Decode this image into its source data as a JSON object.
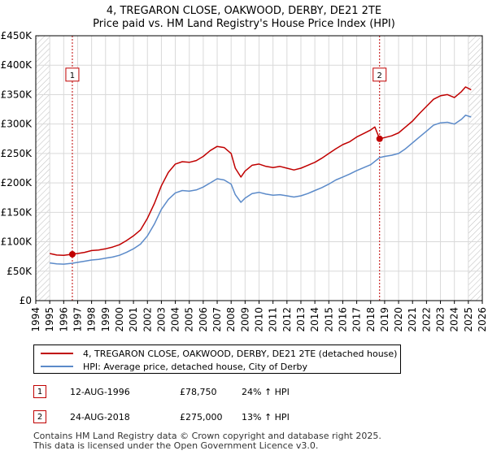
{
  "chart_data": {
    "type": "line",
    "title": "4, TREGARON CLOSE, OAKWOOD, DERBY, DE21 2TE",
    "subtitle": "Price paid vs. HM Land Registry's House Price Index (HPI)",
    "xlabel": "",
    "ylabel": "",
    "xlim": [
      1994,
      2026
    ],
    "ylim": [
      0,
      450000
    ],
    "x_ticks": [
      "1994",
      "1995",
      "1996",
      "1997",
      "1998",
      "1999",
      "2000",
      "2001",
      "2002",
      "2003",
      "2004",
      "2005",
      "2006",
      "2007",
      "2008",
      "2009",
      "2010",
      "2011",
      "2012",
      "2013",
      "2014",
      "2015",
      "2016",
      "2017",
      "2018",
      "2019",
      "2020",
      "2021",
      "2022",
      "2023",
      "2024",
      "2025",
      "2026"
    ],
    "y_ticks": [
      {
        "value": 0,
        "label": "£0"
      },
      {
        "value": 50000,
        "label": "£50K"
      },
      {
        "value": 100000,
        "label": "£100K"
      },
      {
        "value": 150000,
        "label": "£150K"
      },
      {
        "value": 200000,
        "label": "£200K"
      },
      {
        "value": 250000,
        "label": "£250K"
      },
      {
        "value": 300000,
        "label": "£300K"
      },
      {
        "value": 350000,
        "label": "£350K"
      },
      {
        "value": 400000,
        "label": "£400K"
      },
      {
        "value": 450000,
        "label": "£450K"
      }
    ],
    "grid": true,
    "hatched_ranges": [
      [
        1994,
        1995
      ],
      [
        2025,
        2026
      ]
    ],
    "series": [
      {
        "name": "4, TREGARON CLOSE, OAKWOOD, DERBY, DE21 2TE (detached house)",
        "color": "#c00000",
        "points": [
          [
            1995.0,
            80000
          ],
          [
            1995.5,
            77500
          ],
          [
            1996.0,
            77000
          ],
          [
            1996.62,
            78750
          ],
          [
            1997.0,
            80000
          ],
          [
            1997.5,
            82000
          ],
          [
            1998.0,
            85000
          ],
          [
            1998.5,
            86000
          ],
          [
            1999.0,
            88000
          ],
          [
            1999.5,
            91000
          ],
          [
            2000.0,
            95000
          ],
          [
            2000.5,
            102000
          ],
          [
            2001.0,
            110000
          ],
          [
            2001.5,
            120000
          ],
          [
            2002.0,
            140000
          ],
          [
            2002.5,
            165000
          ],
          [
            2003.0,
            195000
          ],
          [
            2003.5,
            218000
          ],
          [
            2004.0,
            232000
          ],
          [
            2004.5,
            236000
          ],
          [
            2005.0,
            235000
          ],
          [
            2005.5,
            238000
          ],
          [
            2006.0,
            245000
          ],
          [
            2006.5,
            255000
          ],
          [
            2007.0,
            262000
          ],
          [
            2007.5,
            260000
          ],
          [
            2008.0,
            250000
          ],
          [
            2008.3,
            225000
          ],
          [
            2008.7,
            210000
          ],
          [
            2009.0,
            220000
          ],
          [
            2009.5,
            230000
          ],
          [
            2010.0,
            232000
          ],
          [
            2010.5,
            228000
          ],
          [
            2011.0,
            226000
          ],
          [
            2011.5,
            228000
          ],
          [
            2012.0,
            225000
          ],
          [
            2012.5,
            222000
          ],
          [
            2013.0,
            225000
          ],
          [
            2013.5,
            230000
          ],
          [
            2014.0,
            235000
          ],
          [
            2014.5,
            242000
          ],
          [
            2015.0,
            250000
          ],
          [
            2015.5,
            258000
          ],
          [
            2016.0,
            265000
          ],
          [
            2016.5,
            270000
          ],
          [
            2017.0,
            278000
          ],
          [
            2017.5,
            284000
          ],
          [
            2018.0,
            290000
          ],
          [
            2018.3,
            295000
          ],
          [
            2018.64,
            275000
          ],
          [
            2019.0,
            277000
          ],
          [
            2019.5,
            280000
          ],
          [
            2020.0,
            285000
          ],
          [
            2020.5,
            295000
          ],
          [
            2021.0,
            305000
          ],
          [
            2021.5,
            318000
          ],
          [
            2022.0,
            330000
          ],
          [
            2022.5,
            342000
          ],
          [
            2023.0,
            348000
          ],
          [
            2023.5,
            350000
          ],
          [
            2024.0,
            345000
          ],
          [
            2024.5,
            355000
          ],
          [
            2024.8,
            363000
          ],
          [
            2025.2,
            358000
          ]
        ]
      },
      {
        "name": "HPI: Average price, detached house, City of Derby",
        "color": "#5b8ac9",
        "points": [
          [
            1995.0,
            64000
          ],
          [
            1995.5,
            62500
          ],
          [
            1996.0,
            62000
          ],
          [
            1996.62,
            63500
          ],
          [
            1997.0,
            65000
          ],
          [
            1997.5,
            67000
          ],
          [
            1998.0,
            69000
          ],
          [
            1998.5,
            70000
          ],
          [
            1999.0,
            72000
          ],
          [
            1999.5,
            74000
          ],
          [
            2000.0,
            77000
          ],
          [
            2000.5,
            82000
          ],
          [
            2001.0,
            88000
          ],
          [
            2001.5,
            96000
          ],
          [
            2002.0,
            110000
          ],
          [
            2002.5,
            130000
          ],
          [
            2003.0,
            155000
          ],
          [
            2003.5,
            172000
          ],
          [
            2004.0,
            183000
          ],
          [
            2004.5,
            187000
          ],
          [
            2005.0,
            186000
          ],
          [
            2005.5,
            188000
          ],
          [
            2006.0,
            193000
          ],
          [
            2006.5,
            200000
          ],
          [
            2007.0,
            207000
          ],
          [
            2007.5,
            205000
          ],
          [
            2008.0,
            198000
          ],
          [
            2008.3,
            180000
          ],
          [
            2008.7,
            167000
          ],
          [
            2009.0,
            174000
          ],
          [
            2009.5,
            182000
          ],
          [
            2010.0,
            184000
          ],
          [
            2010.5,
            181000
          ],
          [
            2011.0,
            179000
          ],
          [
            2011.5,
            180000
          ],
          [
            2012.0,
            178000
          ],
          [
            2012.5,
            176000
          ],
          [
            2013.0,
            178000
          ],
          [
            2013.5,
            182000
          ],
          [
            2014.0,
            187000
          ],
          [
            2014.5,
            192000
          ],
          [
            2015.0,
            198000
          ],
          [
            2015.5,
            205000
          ],
          [
            2016.0,
            210000
          ],
          [
            2016.5,
            215000
          ],
          [
            2017.0,
            221000
          ],
          [
            2017.5,
            226000
          ],
          [
            2018.0,
            231000
          ],
          [
            2018.64,
            243000
          ],
          [
            2019.0,
            245000
          ],
          [
            2019.5,
            247000
          ],
          [
            2020.0,
            250000
          ],
          [
            2020.5,
            258000
          ],
          [
            2021.0,
            268000
          ],
          [
            2021.5,
            278000
          ],
          [
            2022.0,
            288000
          ],
          [
            2022.5,
            298000
          ],
          [
            2023.0,
            302000
          ],
          [
            2023.5,
            303000
          ],
          [
            2024.0,
            300000
          ],
          [
            2024.5,
            308000
          ],
          [
            2024.8,
            315000
          ],
          [
            2025.2,
            312000
          ]
        ]
      }
    ],
    "events": [
      {
        "label": "1",
        "x": 1996.62,
        "value": 78750
      },
      {
        "label": "2",
        "x": 2018.64,
        "value": 275000
      }
    ]
  },
  "legend": {
    "property_label": "4, TREGARON CLOSE, OAKWOOD, DERBY, DE21 2TE (detached house)",
    "hpi_label": "HPI: Average price, detached house, City of Derby"
  },
  "events_table": [
    {
      "num": "1",
      "date": "12-AUG-1996",
      "price": "£78,750",
      "hpi": "24% ↑ HPI"
    },
    {
      "num": "2",
      "date": "24-AUG-2018",
      "price": "£275,000",
      "hpi": "13% ↑ HPI"
    }
  ],
  "footer": {
    "line1": "Contains HM Land Registry data © Crown copyright and database right 2025.",
    "line2": "This data is licensed under the Open Government Licence v3.0."
  },
  "colors": {
    "property": "#c00000",
    "hpi": "#5b8ac9",
    "grid": "#d9d9d9",
    "event_line": "#c00000"
  }
}
